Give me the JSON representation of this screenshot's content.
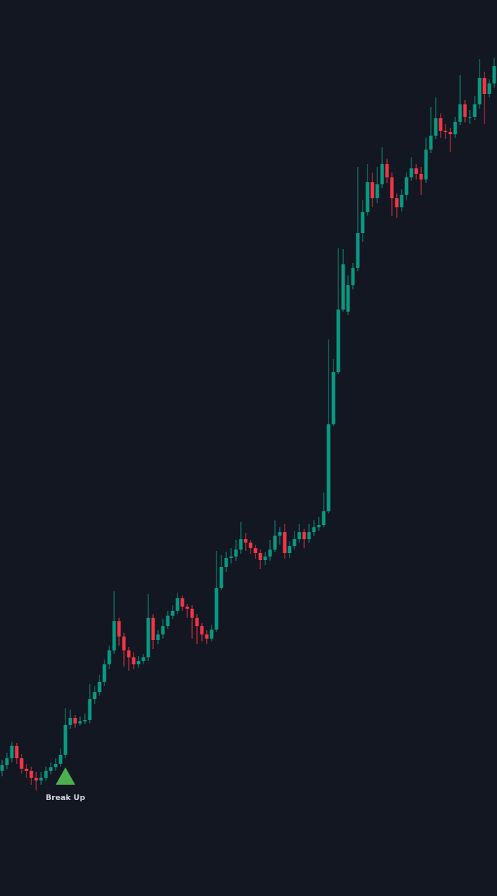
{
  "chart_data": {
    "type": "candlestick",
    "ylim": [
      0,
      1288
    ],
    "up_color": "#089981",
    "down_color": "#f23645",
    "open": [
      180,
      188,
      198,
      216,
      198,
      183,
      180,
      170,
      166,
      170,
      180,
      185,
      190,
      203,
      246,
      256,
      248,
      251,
      253,
      283,
      293,
      308,
      333,
      353,
      395,
      373,
      353,
      343,
      333,
      338,
      343,
      400,
      368,
      376,
      388,
      403,
      410,
      428,
      416,
      413,
      400,
      388,
      376,
      370,
      383,
      443,
      473,
      486,
      488,
      498,
      513,
      508,
      500,
      493,
      483,
      488,
      498,
      518,
      523,
      493,
      503,
      513,
      523,
      513,
      523,
      530,
      533,
      553,
      678,
      753,
      843,
      840,
      878,
      903,
      953,
      983,
      1026,
      1003,
      1023,
      1052,
      1033,
      1003,
      990,
      1008,
      1033,
      1046,
      1038,
      1030,
      1073,
      1093,
      1118,
      1100,
      1098,
      1095,
      1113,
      1138,
      1120,
      1120,
      1138,
      1176,
      1153,
      1168
    ],
    "high": [
      196,
      206,
      222,
      220,
      204,
      190,
      186,
      178,
      178,
      186,
      192,
      198,
      212,
      270,
      268,
      260,
      258,
      262,
      305,
      302,
      318,
      340,
      360,
      438,
      400,
      378,
      358,
      350,
      345,
      348,
      434,
      405,
      382,
      398,
      410,
      418,
      436,
      432,
      420,
      418,
      405,
      392,
      382,
      390,
      496,
      490,
      495,
      500,
      512,
      538,
      522,
      512,
      505,
      498,
      494,
      512,
      540,
      530,
      535,
      510,
      525,
      535,
      528,
      535,
      540,
      545,
      580,
      800,
      772,
      932,
      930,
      892,
      910,
      1048,
      1000,
      1052,
      1040,
      1048,
      1076,
      1060,
      1040,
      1010,
      1016,
      1040,
      1062,
      1052,
      1048,
      1090,
      1134,
      1148,
      1125,
      1110,
      1104,
      1120,
      1180,
      1144,
      1130,
      1150,
      1203,
      1185,
      1174,
      1205
    ],
    "low": [
      172,
      182,
      192,
      190,
      176,
      170,
      160,
      152,
      160,
      166,
      175,
      180,
      186,
      198,
      240,
      242,
      245,
      247,
      248,
      276,
      288,
      302,
      326,
      348,
      360,
      330,
      324,
      326,
      328,
      333,
      338,
      355,
      362,
      370,
      384,
      398,
      405,
      410,
      400,
      370,
      362,
      366,
      362,
      366,
      380,
      440,
      466,
      478,
      482,
      492,
      496,
      492,
      485,
      470,
      476,
      482,
      494,
      505,
      485,
      486,
      498,
      508,
      500,
      508,
      518,
      525,
      530,
      550,
      675,
      750,
      840,
      835,
      872,
      898,
      940,
      978,
      990,
      996,
      1018,
      1025,
      978,
      975,
      984,
      1000,
      1028,
      1030,
      1008,
      1025,
      1068,
      1088,
      1090,
      1088,
      1070,
      1090,
      1108,
      1112,
      1110,
      1115,
      1132,
      1110,
      1148,
      1162
    ],
    "close": [
      188,
      198,
      216,
      198,
      183,
      180,
      170,
      166,
      170,
      180,
      185,
      190,
      203,
      246,
      256,
      248,
      251,
      253,
      283,
      293,
      308,
      333,
      353,
      395,
      373,
      353,
      343,
      333,
      338,
      343,
      400,
      368,
      376,
      388,
      403,
      410,
      428,
      416,
      413,
      400,
      388,
      376,
      370,
      383,
      443,
      473,
      486,
      488,
      498,
      513,
      508,
      500,
      493,
      483,
      488,
      498,
      518,
      523,
      493,
      503,
      513,
      523,
      513,
      523,
      530,
      533,
      553,
      678,
      753,
      843,
      908,
      878,
      903,
      953,
      983,
      1026,
      1003,
      1023,
      1052,
      1033,
      1003,
      990,
      1008,
      1033,
      1046,
      1038,
      1030,
      1073,
      1093,
      1118,
      1100,
      1098,
      1095,
      1113,
      1138,
      1120,
      1120,
      1138,
      1176,
      1153,
      1168,
      1193
    ],
    "annotations": [
      {
        "text": "Break Up",
        "at": 13,
        "color": "#4caf50"
      }
    ]
  }
}
